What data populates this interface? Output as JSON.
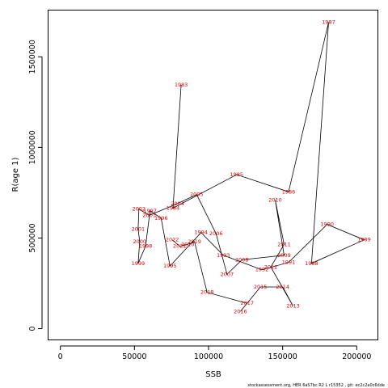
{
  "chart_data": {
    "type": "scatter",
    "title": "",
    "xlabel": "SSB",
    "ylabel": "R(age 1)",
    "xlim": [
      -8000,
      214000
    ],
    "ylim": [
      -60000,
      1760000
    ],
    "x_ticks": [
      0,
      50000,
      100000,
      150000,
      200000
    ],
    "y_ticks": [
      0,
      500000,
      1000000,
      1500000
    ],
    "x_tick_labels": [
      "0",
      "50000",
      "100000",
      "150000",
      "200000"
    ],
    "y_tick_labels": [
      "0",
      "500000",
      "1000000",
      "1500000"
    ],
    "grid": false,
    "legend": "none",
    "point_color": "#e00000",
    "line_color": "#000000",
    "connected": true,
    "points": [
      {
        "year": "1983",
        "x": 81500,
        "y": 1345000
      },
      {
        "year": "1984",
        "x": 76000,
        "y": 665000
      },
      {
        "year": "1985",
        "x": 119000,
        "y": 850000
      },
      {
        "year": "1986",
        "x": 154000,
        "y": 755000
      },
      {
        "year": "1987",
        "x": 181000,
        "y": 1690000
      },
      {
        "year": "1988",
        "x": 169500,
        "y": 360000
      },
      {
        "year": "1989",
        "x": 205000,
        "y": 490000
      },
      {
        "year": "1990",
        "x": 180000,
        "y": 575000
      },
      {
        "year": "1991",
        "x": 154000,
        "y": 365000
      },
      {
        "year": "1992",
        "x": 136000,
        "y": 325000
      },
      {
        "year": "1993",
        "x": 110000,
        "y": 405000
      },
      {
        "year": "1994",
        "x": 95000,
        "y": 530000
      },
      {
        "year": "1995",
        "x": 74000,
        "y": 345000
      },
      {
        "year": "1996",
        "x": 68000,
        "y": 610000
      },
      {
        "year": "1997",
        "x": 60500,
        "y": 650000
      },
      {
        "year": "1998",
        "x": 57500,
        "y": 455000
      },
      {
        "year": "1999",
        "x": 52500,
        "y": 360000
      },
      {
        "year": "2000",
        "x": 53500,
        "y": 480000
      },
      {
        "year": "2001",
        "x": 52500,
        "y": 550000
      },
      {
        "year": "2002",
        "x": 53000,
        "y": 660000
      },
      {
        "year": "2003",
        "x": 60000,
        "y": 625000
      },
      {
        "year": "2004",
        "x": 79000,
        "y": 690000
      },
      {
        "year": "2005",
        "x": 92000,
        "y": 740000
      },
      {
        "year": "2006",
        "x": 105000,
        "y": 525000
      },
      {
        "year": "2007",
        "x": 112500,
        "y": 300000
      },
      {
        "year": "2008",
        "x": 122500,
        "y": 380000
      },
      {
        "year": "2009",
        "x": 151000,
        "y": 405000
      },
      {
        "year": "2010",
        "x": 145000,
        "y": 710000
      },
      {
        "year": "2011",
        "x": 151000,
        "y": 465000
      },
      {
        "year": "2012",
        "x": 142000,
        "y": 340000
      },
      {
        "year": "2013",
        "x": 157000,
        "y": 125000
      },
      {
        "year": "2014",
        "x": 150000,
        "y": 230000
      },
      {
        "year": "2015",
        "x": 135000,
        "y": 230000
      },
      {
        "year": "2016",
        "x": 121500,
        "y": 95000
      },
      {
        "year": "2017",
        "x": 126000,
        "y": 140000
      },
      {
        "year": "2018",
        "x": 99000,
        "y": 200000
      },
      {
        "year": "2019",
        "x": 90500,
        "y": 480000
      },
      {
        "year": "2020",
        "x": 86000,
        "y": 465000
      },
      {
        "year": "2021",
        "x": 80500,
        "y": 455000
      },
      {
        "year": "2022",
        "x": 75500,
        "y": 490000
      }
    ]
  },
  "footer": {
    "credit": "stockassessment.org, HER 6aS7bc R2 L r15352 , git: ec2c2a0c6dde"
  }
}
